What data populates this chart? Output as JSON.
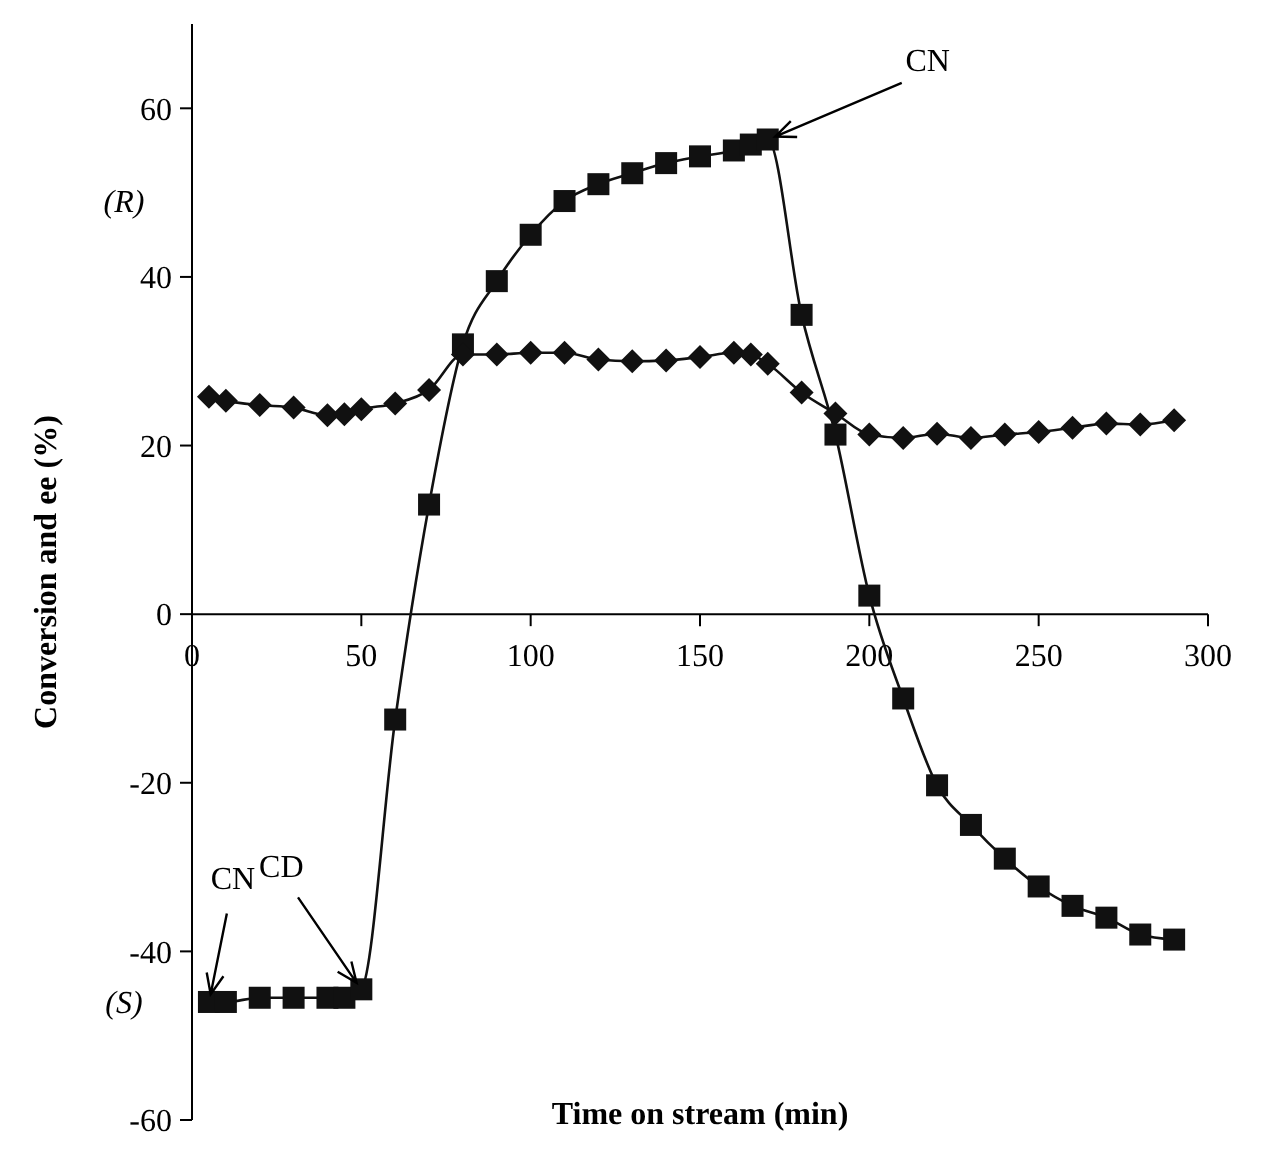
{
  "chart_data": {
    "type": "line",
    "xlabel": "Time on stream (min)",
    "ylabel": "Conversion and ee (%)",
    "xlim": [
      0,
      300
    ],
    "xticks": [
      0,
      50,
      100,
      150,
      200,
      250,
      300
    ],
    "ylim": [
      -60,
      70
    ],
    "yticks": [
      -60,
      -40,
      -20,
      0,
      20,
      40,
      60
    ],
    "x": [
      5,
      10,
      20,
      30,
      40,
      45,
      50,
      60,
      70,
      80,
      90,
      100,
      110,
      120,
      130,
      140,
      150,
      160,
      165,
      170,
      180,
      190,
      200,
      210,
      220,
      230,
      240,
      250,
      260,
      270,
      280,
      290
    ],
    "series": [
      {
        "color": "#111111",
        "marker": "square",
        "values": [
          -46,
          -46,
          -45.5,
          -45.5,
          -45.5,
          -45.5,
          -44.5,
          -12.5,
          13,
          32,
          39.5,
          45,
          49,
          51,
          52.3,
          53.5,
          54.3,
          55,
          55.7,
          56.3,
          35.5,
          21.3,
          2.2,
          -10,
          -20.3,
          -25,
          -29,
          -32.3,
          -34.6,
          -36,
          -38,
          -38.6
        ]
      },
      {
        "color": "#111111",
        "marker": "diamond",
        "values": [
          25.8,
          25.3,
          24.8,
          24.5,
          23.6,
          23.7,
          24.3,
          25,
          26.6,
          30.8,
          30.8,
          31,
          31,
          30.2,
          30,
          30.1,
          30.5,
          31,
          30.8,
          29.7,
          26.3,
          23.8,
          21.3,
          20.9,
          21.4,
          20.9,
          21.3,
          21.6,
          22.1,
          22.6,
          22.5,
          23
        ]
      }
    ],
    "grid": false,
    "line_style": "solid",
    "annotations": [
      "(R)",
      "(S)",
      {
        "text": "CN",
        "x": 5,
        "y": -46
      },
      {
        "text": "CD",
        "x": 50,
        "y": -44.5
      },
      {
        "text": "CN",
        "x": 170,
        "y": 56.3
      }
    ]
  }
}
